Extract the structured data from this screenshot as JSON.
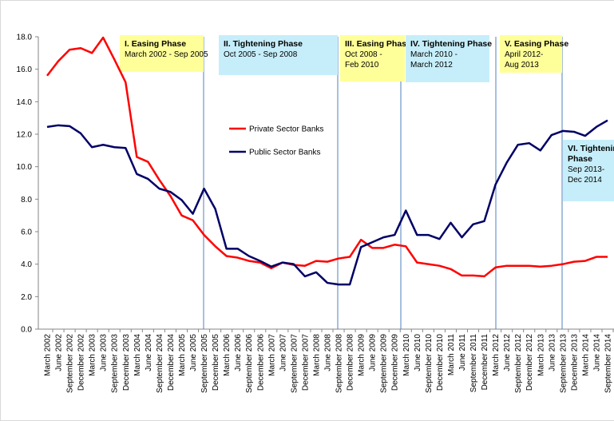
{
  "chart_data": {
    "type": "line",
    "categories": [
      "March 2002",
      "June 2002",
      "September 2002",
      "December 2002",
      "March 2003",
      "June 2003",
      "September 2003",
      "December 2003",
      "March 2004",
      "June 2004",
      "September 2004",
      "December 2004",
      "March 2005",
      "June 2005",
      "September 2005",
      "December 2005",
      "March 2006",
      "June 2006",
      "September 2006",
      "December 2006",
      "March 2007",
      "June 2007",
      "September 2007",
      "December 2007",
      "March 2008",
      "June 2008",
      "September 2008",
      "December 2008",
      "March 2009",
      "June 2009",
      "September 2009",
      "December 2009",
      "March 2010",
      "June 2010",
      "September 2010",
      "December 2010",
      "March 2011",
      "June 2011",
      "September 2011",
      "December 2011",
      "March 2012",
      "June 2012",
      "September 2012",
      "December 2012",
      "March 2013",
      "June 2013",
      "September 2013",
      "December 2013",
      "March 2014",
      "June 2014",
      "September 2014"
    ],
    "series": [
      {
        "name": "Private Sector Banks",
        "color": "#ff0000",
        "values": [
          15.6,
          16.5,
          17.2,
          17.3,
          17.0,
          17.95,
          16.6,
          15.2,
          10.6,
          10.3,
          9.2,
          8.2,
          7.0,
          6.7,
          5.8,
          5.1,
          4.5,
          4.4,
          4.2,
          4.1,
          3.75,
          4.1,
          3.95,
          3.9,
          4.2,
          4.15,
          4.35,
          4.45,
          5.5,
          5.0,
          5.0,
          5.2,
          5.1,
          4.1,
          4.0,
          3.9,
          3.7,
          3.3,
          3.3,
          3.25,
          3.8,
          3.9,
          3.9,
          3.9,
          3.85,
          3.9,
          4.0,
          4.15,
          4.2,
          4.45,
          4.45
        ]
      },
      {
        "name": "Public Sector Banks",
        "color": "#000066",
        "values": [
          12.45,
          12.55,
          12.5,
          12.05,
          11.2,
          11.35,
          11.2,
          11.15,
          9.55,
          9.25,
          8.65,
          8.45,
          7.95,
          7.1,
          8.65,
          7.4,
          4.95,
          4.95,
          4.5,
          4.2,
          3.85,
          4.1,
          4.0,
          3.25,
          3.5,
          2.85,
          2.75,
          2.75,
          5.05,
          5.35,
          5.65,
          5.8,
          7.3,
          5.8,
          5.8,
          5.55,
          6.55,
          5.65,
          6.45,
          6.65,
          8.9,
          10.25,
          11.35,
          11.45,
          11.0,
          11.95,
          12.2,
          12.15,
          11.9,
          12.45,
          12.85
        ]
      }
    ],
    "ylim": [
      0,
      18
    ],
    "yticks": [
      {
        "value": 0,
        "label": "0.0"
      },
      {
        "value": 2,
        "label": "2.0"
      },
      {
        "value": 4,
        "label": "4.0"
      },
      {
        "value": 6,
        "label": "6.0"
      },
      {
        "value": 8,
        "label": "8.0"
      },
      {
        "value": 10,
        "label": "10.0"
      },
      {
        "value": 12,
        "label": "12.0"
      },
      {
        "value": 14,
        "label": "14.0"
      },
      {
        "value": 16,
        "label": "16.0"
      },
      {
        "value": 18,
        "label": "18.0"
      }
    ],
    "annotations": [
      {
        "title": "I. Easing Phase",
        "lines": [
          "March 2002 - Sep 2005"
        ],
        "color": "#ffff99"
      },
      {
        "title": "II. Tightening Phase",
        "lines": [
          "Oct 2005 - Sep 2008"
        ],
        "color": "#c6eefa"
      },
      {
        "title": "III. Easing Phase",
        "lines": [
          "Oct 2008 -",
          "Feb 2010"
        ],
        "color": "#ffff99"
      },
      {
        "title": "IV. Tightening Phase",
        "lines": [
          "March 2010 -",
          "March 2012"
        ],
        "color": "#c6eefa"
      },
      {
        "title": "V. Easing Phase",
        "lines": [
          "April 2012-",
          "Aug 2013"
        ],
        "color": "#ffff99"
      },
      {
        "title": "VI. Tightening Phase",
        "lines": [
          "Sep 2013-",
          "Dec 2014"
        ],
        "color": "#c6eefa"
      }
    ]
  }
}
